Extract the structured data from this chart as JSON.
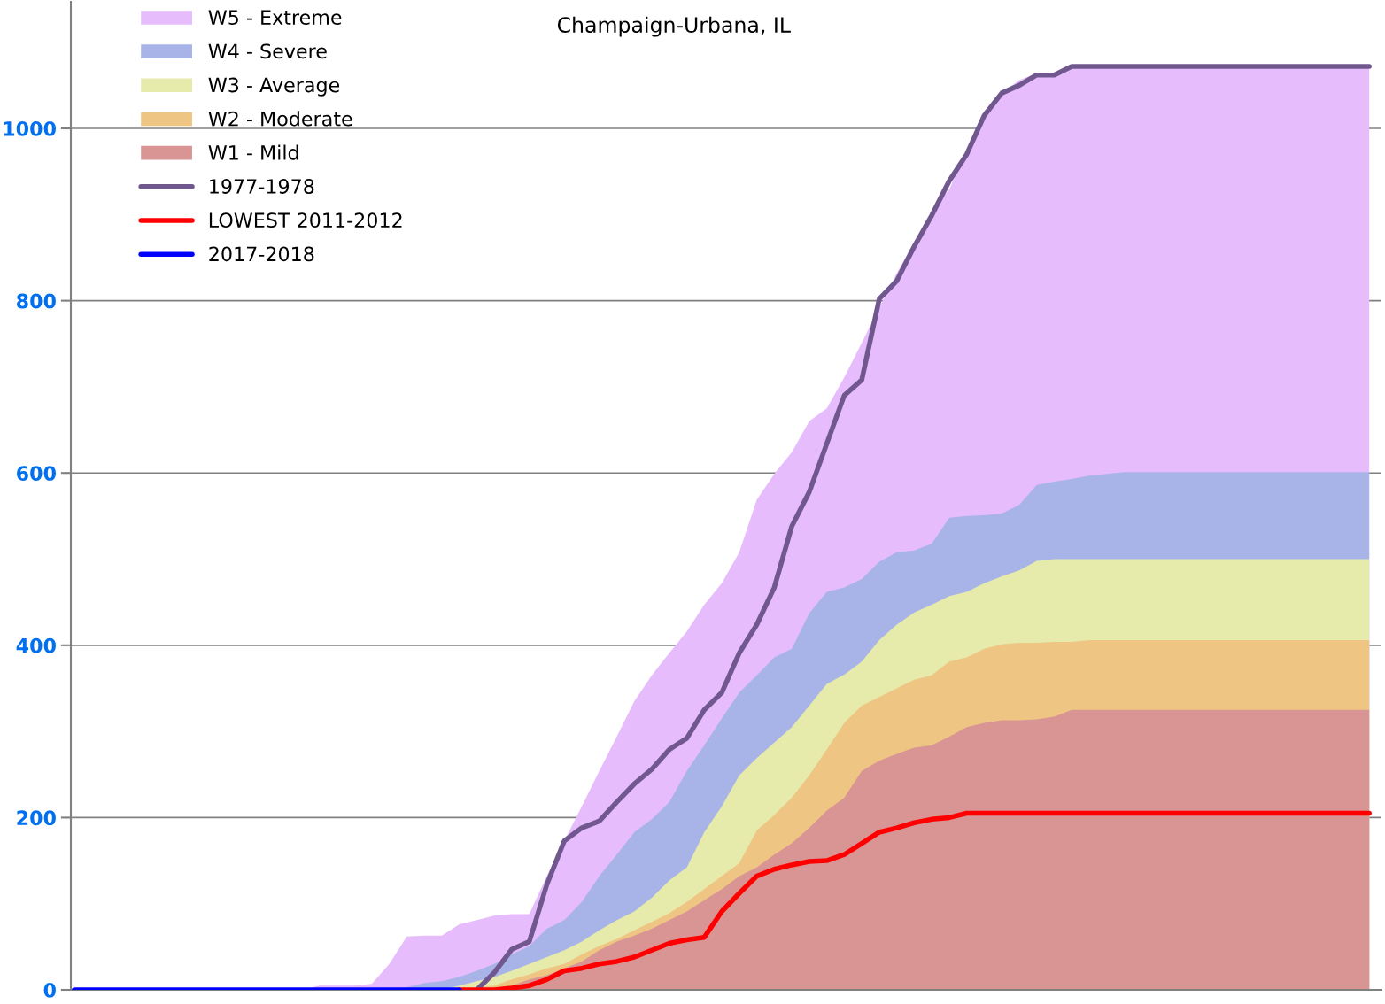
{
  "chart_data": {
    "type": "area",
    "title": "Champaign-Urbana, IL",
    "categories": [
      null,
      null,
      null,
      null,
      null,
      null,
      null,
      null,
      null,
      null,
      null,
      null,
      null,
      null,
      null,
      null,
      null,
      null,
      null,
      null,
      null,
      null,
      null,
      null,
      null,
      null,
      null,
      null,
      null,
      null,
      null,
      null,
      null,
      null,
      null,
      null,
      null,
      null,
      null,
      null,
      null,
      null,
      null,
      null,
      null,
      null,
      null,
      null,
      null,
      null,
      null,
      null,
      null,
      null,
      null,
      null,
      null,
      null,
      null,
      null,
      null,
      null,
      null,
      null,
      null,
      null,
      null,
      null,
      null,
      null,
      null,
      null,
      null,
      null,
      null
    ],
    "series": [
      {
        "name": "W5 - Extreme",
        "color": "#e6bcfd",
        "values": [
          0,
          0,
          0,
          0,
          0,
          0,
          0,
          0,
          0,
          0,
          0,
          0,
          0,
          0,
          5,
          5,
          5,
          7,
          30,
          62,
          63,
          63,
          76,
          81,
          86,
          88,
          88,
          132,
          173,
          213,
          254,
          294,
          335,
          365,
          391,
          416,
          447,
          472,
          508,
          569,
          599,
          624,
          660,
          675,
          711,
          751,
          792,
          832,
          868,
          904,
          929,
          975,
          1020,
          1041,
          1056,
          1064,
          1064,
          1073,
          1073,
          1073,
          1073,
          1073,
          1073,
          1073,
          1073,
          1073,
          1073,
          1073,
          1073,
          1073,
          1073,
          1073,
          1073,
          1073,
          1073
        ]
      },
      {
        "name": "W4 - Severe",
        "color": "#a8b4e7",
        "values": [
          0,
          0,
          0,
          0,
          0,
          0,
          0,
          0,
          0,
          0,
          0,
          0,
          0,
          0,
          0,
          0,
          0,
          0,
          0,
          3,
          8,
          10,
          15,
          22,
          30,
          41,
          51,
          71,
          81,
          102,
          132,
          157,
          183,
          198,
          218,
          254,
          284,
          315,
          345,
          365,
          386,
          396,
          437,
          462,
          467,
          477,
          497,
          508,
          510,
          518,
          548,
          550,
          551,
          553,
          563,
          586,
          590,
          593,
          597,
          599,
          601,
          601,
          601,
          601,
          601,
          601,
          601,
          601,
          601,
          601,
          601,
          601,
          601,
          601,
          601
        ]
      },
      {
        "name": "W3 - Average",
        "color": "#e6eaab",
        "values": [
          0,
          0,
          0,
          0,
          0,
          0,
          0,
          0,
          0,
          0,
          0,
          0,
          0,
          0,
          0,
          0,
          0,
          0,
          0,
          0,
          0,
          0,
          5,
          10,
          15,
          22,
          30,
          38,
          46,
          56,
          69,
          81,
          91,
          107,
          127,
          142,
          183,
          213,
          249,
          269,
          287,
          305,
          330,
          355,
          366,
          381,
          406,
          424,
          438,
          447,
          457,
          462,
          472,
          480,
          487,
          498,
          500,
          500,
          500,
          500,
          500,
          500,
          500,
          500,
          500,
          500,
          500,
          500,
          500,
          500,
          500,
          500,
          500,
          500,
          500
        ]
      },
      {
        "name": "W2 - Moderate",
        "color": "#eec583",
        "values": [
          0,
          0,
          0,
          0,
          0,
          0,
          0,
          0,
          0,
          0,
          0,
          0,
          0,
          0,
          0,
          0,
          0,
          0,
          0,
          0,
          0,
          0,
          0,
          3,
          5,
          12,
          18,
          25,
          30,
          41,
          51,
          59,
          69,
          79,
          89,
          102,
          117,
          132,
          147,
          185,
          203,
          223,
          249,
          279,
          310,
          330,
          340,
          350,
          360,
          365,
          381,
          386,
          396,
          401,
          403,
          403,
          404,
          404,
          406,
          406,
          406,
          406,
          406,
          406,
          406,
          406,
          406,
          406,
          406,
          406,
          406,
          406,
          406,
          406,
          406
        ]
      },
      {
        "name": "W1 - Mild",
        "color": "#d99594",
        "values": [
          0,
          0,
          0,
          0,
          0,
          0,
          0,
          0,
          0,
          0,
          0,
          0,
          0,
          0,
          0,
          0,
          0,
          0,
          0,
          0,
          0,
          0,
          0,
          0,
          2,
          5,
          12,
          17,
          25,
          33,
          46,
          56,
          63,
          71,
          81,
          91,
          104,
          117,
          132,
          142,
          157,
          170,
          188,
          208,
          223,
          254,
          266,
          274,
          281,
          284,
          294,
          305,
          310,
          313,
          313,
          314,
          317,
          325,
          325,
          325,
          325,
          325,
          325,
          325,
          325,
          325,
          325,
          325,
          325,
          325,
          325,
          325,
          325,
          325,
          325
        ]
      },
      {
        "name": "1977-1978",
        "type": "line",
        "color": "#70588f",
        "values": [
          null,
          null,
          null,
          null,
          null,
          null,
          null,
          null,
          null,
          null,
          null,
          null,
          null,
          null,
          null,
          null,
          null,
          null,
          null,
          null,
          null,
          null,
          null,
          0,
          20,
          47,
          56,
          122,
          173,
          188,
          196,
          218,
          239,
          256,
          279,
          292,
          325,
          345,
          391,
          424,
          467,
          538,
          578,
          634,
          690,
          708,
          802,
          823,
          863,
          899,
          939,
          970,
          1015,
          1041,
          1050,
          1062,
          1062,
          1072,
          1072,
          1072,
          1072,
          1072,
          1072,
          1072,
          1072,
          1072,
          1072,
          1072,
          1072,
          1072,
          1072,
          1072,
          1072,
          1072,
          1072
        ]
      },
      {
        "name": "LOWEST 2011-2012",
        "type": "line",
        "color": "#ff0000",
        "values": [
          null,
          null,
          null,
          null,
          null,
          null,
          null,
          null,
          null,
          null,
          null,
          null,
          null,
          null,
          null,
          null,
          null,
          null,
          null,
          null,
          null,
          null,
          0,
          0,
          0,
          2,
          5,
          12,
          22,
          25,
          30,
          33,
          38,
          46,
          54,
          58,
          61,
          91,
          112,
          132,
          140,
          145,
          149,
          150,
          157,
          170,
          183,
          188,
          194,
          198,
          200,
          205,
          205,
          205,
          205,
          205,
          205,
          205,
          205,
          205,
          205,
          205,
          205,
          205,
          205,
          205,
          205,
          205,
          205,
          205,
          205,
          205,
          205,
          205,
          205
        ]
      },
      {
        "name": "2017-2018",
        "type": "line",
        "color": "#0000ff",
        "values": [
          0,
          0,
          0,
          0,
          0,
          0,
          0,
          0,
          0,
          0,
          0,
          0,
          0,
          0,
          0,
          0,
          0,
          0,
          0,
          0,
          0,
          0,
          0,
          null,
          null,
          null,
          null,
          null,
          null,
          null,
          null,
          null,
          null,
          null,
          null,
          null,
          null,
          null,
          null,
          null,
          null,
          null,
          null,
          null,
          null,
          null,
          null,
          null,
          null,
          null,
          null,
          null,
          null,
          null,
          null,
          null,
          null,
          null,
          null,
          null,
          null,
          null,
          null,
          null,
          null,
          null,
          null,
          null,
          null,
          null,
          null,
          null,
          null,
          null,
          null
        ]
      }
    ],
    "ylim": [
      0,
      1147
    ],
    "yticks": [
      0,
      200,
      400,
      600,
      800,
      1000
    ],
    "grid": "y",
    "legend": "top left",
    "tick_labels": "y"
  }
}
